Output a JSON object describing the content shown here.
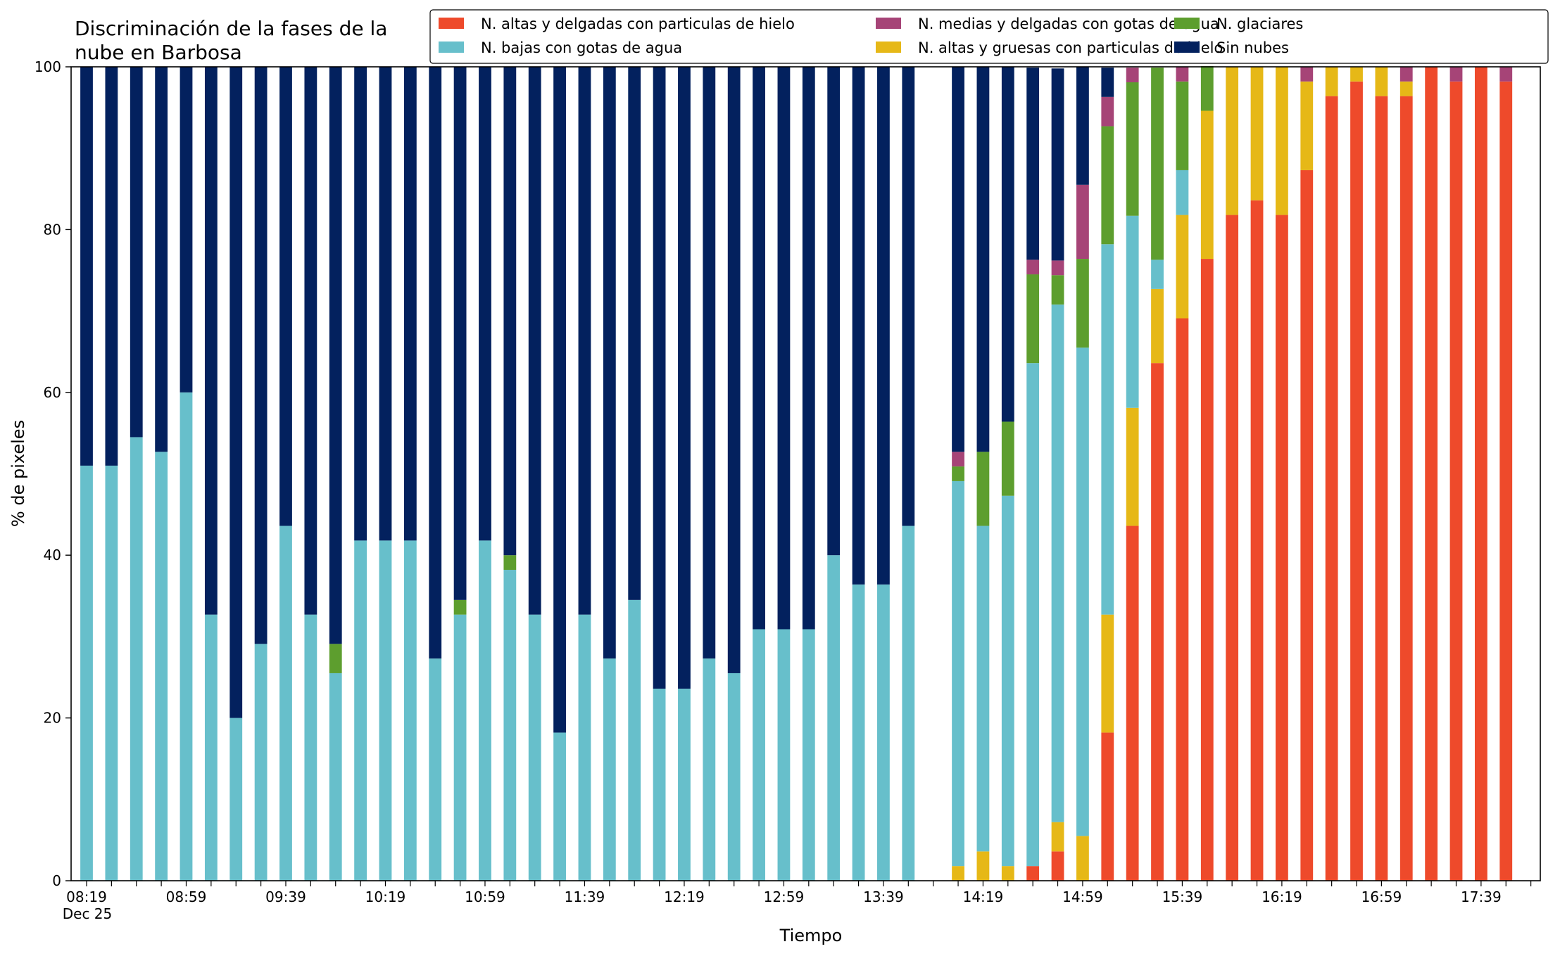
{
  "chart_data": {
    "type": "bar",
    "stacked": true,
    "title": [
      "Discriminación de la fases de la",
      "nube en Barbosa"
    ],
    "xlabel": "Tiempo",
    "ylabel": "% de pixeles",
    "ylim": [
      0,
      100
    ],
    "yticks": [
      0,
      20,
      40,
      60,
      80,
      100
    ],
    "grid": false,
    "legend_position": "top-right",
    "x_interval_minutes": 10,
    "x_start": "08:19",
    "x_start_date": "Dec 25",
    "x_end": "17:59",
    "x_tick_labels": [
      "08:19",
      "08:59",
      "09:39",
      "10:19",
      "10:59",
      "11:39",
      "12:19",
      "12:59",
      "13:39",
      "14:19",
      "14:59",
      "15:39",
      "16:19",
      "16:59",
      "17:39"
    ],
    "series": [
      {
        "name": "N. altas y delgadas con particulas de hielo",
        "color": "#EE4A2B"
      },
      {
        "name": "N. altas y gruesas con particulas de hielo",
        "color": "#E6B817"
      },
      {
        "name": "N. bajas con gotas de agua",
        "color": "#67BFCB"
      },
      {
        "name": "N. glaciares",
        "color": "#5D9E2E"
      },
      {
        "name": "N. medias y delgadas con gotas de agua",
        "color": "#A64477"
      },
      {
        "name": "Sin nubes",
        "color": "#03215E"
      }
    ],
    "legend_order": [
      0,
      2,
      4,
      1,
      3,
      5
    ],
    "bars": [
      {
        "time": "08:19",
        "values": [
          0,
          0,
          51,
          0,
          0,
          49
        ]
      },
      {
        "time": "08:29",
        "values": [
          0,
          0,
          51,
          0,
          0,
          49
        ]
      },
      {
        "time": "08:39",
        "values": [
          0,
          0,
          54.5,
          0,
          0,
          45.5
        ]
      },
      {
        "time": "08:49",
        "values": [
          0,
          0,
          52.7,
          0,
          0,
          47.3
        ]
      },
      {
        "time": "08:59",
        "values": [
          0,
          0,
          60,
          0,
          0,
          40
        ]
      },
      {
        "time": "09:09",
        "values": [
          0,
          0,
          32.7,
          0,
          0,
          67.3
        ]
      },
      {
        "time": "09:19",
        "values": [
          0,
          0,
          20,
          0,
          0,
          80
        ]
      },
      {
        "time": "09:29",
        "values": [
          0,
          0,
          29.1,
          0,
          0,
          70.9
        ]
      },
      {
        "time": "09:39",
        "values": [
          0,
          0,
          43.6,
          0,
          0,
          56.4
        ]
      },
      {
        "time": "09:49",
        "values": [
          0,
          0,
          32.7,
          0,
          0,
          67.3
        ]
      },
      {
        "time": "09:59",
        "values": [
          0,
          0,
          25.5,
          3.6,
          0,
          70.9
        ]
      },
      {
        "time": "10:09",
        "values": [
          0,
          0,
          41.8,
          0,
          0,
          58.2
        ]
      },
      {
        "time": "10:19",
        "values": [
          0,
          0,
          41.8,
          0,
          0,
          58.2
        ]
      },
      {
        "time": "10:29",
        "values": [
          0,
          0,
          41.8,
          0,
          0,
          58.2
        ]
      },
      {
        "time": "10:39",
        "values": [
          0,
          0,
          27.3,
          0,
          0,
          72.7
        ]
      },
      {
        "time": "10:49",
        "values": [
          0,
          0,
          32.7,
          1.8,
          0,
          65.5
        ]
      },
      {
        "time": "10:59",
        "values": [
          0,
          0,
          41.8,
          0,
          0,
          58.2
        ]
      },
      {
        "time": "11:09",
        "values": [
          0,
          0,
          38.2,
          1.8,
          0,
          60
        ]
      },
      {
        "time": "11:19",
        "values": [
          0,
          0,
          32.7,
          0,
          0,
          67.3
        ]
      },
      {
        "time": "11:29",
        "values": [
          0,
          0,
          18.2,
          0,
          0,
          81.8
        ]
      },
      {
        "time": "11:39",
        "values": [
          0,
          0,
          32.7,
          0,
          0,
          67.3
        ]
      },
      {
        "time": "11:49",
        "values": [
          0,
          0,
          27.3,
          0,
          0,
          72.7
        ]
      },
      {
        "time": "11:59",
        "values": [
          0,
          0,
          34.5,
          0,
          0,
          65.5
        ]
      },
      {
        "time": "12:09",
        "values": [
          0,
          0,
          23.6,
          0,
          0,
          76.4
        ]
      },
      {
        "time": "12:19",
        "values": [
          0,
          0,
          23.6,
          0,
          0,
          76.4
        ]
      },
      {
        "time": "12:29",
        "values": [
          0,
          0,
          27.3,
          0,
          0,
          72.7
        ]
      },
      {
        "time": "12:39",
        "values": [
          0,
          0,
          25.5,
          0,
          0,
          74.5
        ]
      },
      {
        "time": "12:49",
        "values": [
          0,
          0,
          30.9,
          0,
          0,
          69.1
        ]
      },
      {
        "time": "12:59",
        "values": [
          0,
          0,
          30.9,
          0,
          0,
          69.1
        ]
      },
      {
        "time": "13:09",
        "values": [
          0,
          0,
          30.9,
          0,
          0,
          69.1
        ]
      },
      {
        "time": "13:19",
        "values": [
          0,
          0,
          40,
          0,
          0,
          60
        ]
      },
      {
        "time": "13:29",
        "values": [
          0,
          0,
          36.4,
          0,
          0,
          63.6
        ]
      },
      {
        "time": "13:39",
        "values": [
          0,
          0,
          36.4,
          0,
          0,
          63.6
        ]
      },
      {
        "time": "13:49",
        "values": [
          0,
          0,
          43.6,
          0,
          0,
          56.4
        ]
      },
      {
        "time": "13:59",
        "values": [
          0,
          0,
          0,
          0,
          0,
          0
        ]
      },
      {
        "time": "14:09",
        "values": [
          0,
          1.8,
          47.3,
          1.8,
          1.8,
          47.3
        ]
      },
      {
        "time": "14:19",
        "values": [
          0,
          3.6,
          40,
          9.1,
          0,
          47.3
        ]
      },
      {
        "time": "14:29",
        "values": [
          0,
          1.8,
          45.5,
          9.1,
          0,
          43.6
        ]
      },
      {
        "time": "14:39",
        "values": [
          1.8,
          0,
          61.8,
          10.9,
          1.8,
          23.6
        ]
      },
      {
        "time": "14:49",
        "values": [
          3.6,
          3.6,
          63.6,
          3.6,
          1.8,
          23.6
        ]
      },
      {
        "time": "14:59",
        "values": [
          0,
          5.5,
          60,
          10.9,
          9.1,
          14.5
        ]
      },
      {
        "time": "15:09",
        "values": [
          18.2,
          14.5,
          45.5,
          14.5,
          3.6,
          3.6
        ]
      },
      {
        "time": "15:19",
        "values": [
          43.6,
          14.5,
          23.6,
          16.4,
          1.8,
          0
        ]
      },
      {
        "time": "15:29",
        "values": [
          63.6,
          9.1,
          3.6,
          23.6,
          0,
          0
        ]
      },
      {
        "time": "15:39",
        "values": [
          69.1,
          12.7,
          5.5,
          10.9,
          1.8,
          0
        ]
      },
      {
        "time": "15:49",
        "values": [
          76.4,
          18.2,
          0,
          5.5,
          0,
          0
        ]
      },
      {
        "time": "15:59",
        "values": [
          81.8,
          18.2,
          0,
          0,
          0,
          0
        ]
      },
      {
        "time": "16:09",
        "values": [
          83.6,
          16.4,
          0,
          0,
          0,
          0
        ]
      },
      {
        "time": "16:19",
        "values": [
          81.8,
          18.2,
          0,
          0,
          0,
          0
        ]
      },
      {
        "time": "16:29",
        "values": [
          87.3,
          10.9,
          0,
          0,
          1.8,
          0
        ]
      },
      {
        "time": "16:39",
        "values": [
          96.4,
          3.6,
          0,
          0,
          0,
          0
        ]
      },
      {
        "time": "16:49",
        "values": [
          98.2,
          1.8,
          0,
          0,
          0,
          0
        ]
      },
      {
        "time": "16:59",
        "values": [
          96.4,
          3.6,
          0,
          0,
          0,
          0
        ]
      },
      {
        "time": "17:09",
        "values": [
          96.4,
          1.8,
          0,
          0,
          1.8,
          0
        ]
      },
      {
        "time": "17:19",
        "values": [
          100,
          0,
          0,
          0,
          0,
          0
        ]
      },
      {
        "time": "17:29",
        "values": [
          98.2,
          0,
          0,
          0,
          1.8,
          0
        ]
      },
      {
        "time": "17:39",
        "values": [
          100,
          0,
          0,
          0,
          0,
          0
        ]
      },
      {
        "time": "17:49",
        "values": [
          98.2,
          0,
          0,
          0,
          1.8,
          0
        ]
      }
    ]
  }
}
